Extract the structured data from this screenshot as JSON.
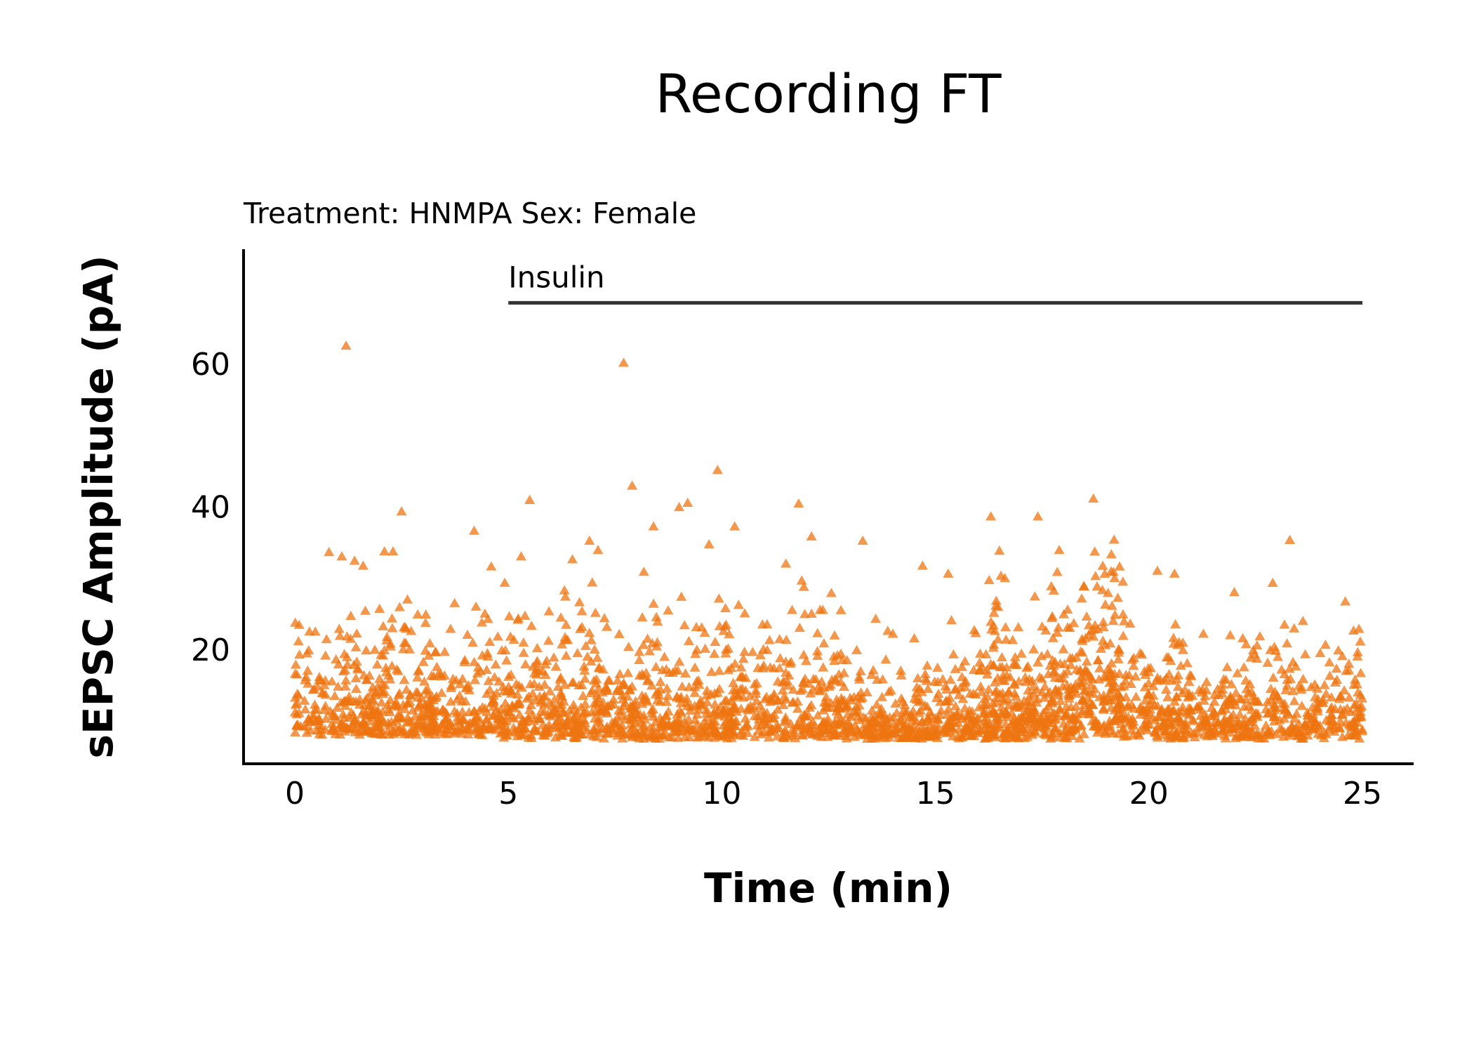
{
  "chart_data": {
    "type": "scatter",
    "title": "Recording FT",
    "subtitle": "Treatment: HNMPA  Sex: Female",
    "xlabel": "Time (min)",
    "ylabel": "sEPSC Amplitude (pA)",
    "xlim": [
      -1.2,
      26.2
    ],
    "ylim": [
      4,
      76
    ],
    "xticks": [
      0,
      5,
      10,
      15,
      20,
      25
    ],
    "yticks": [
      20,
      40,
      60
    ],
    "grid": false,
    "legend": "none",
    "marker": "triangle",
    "color": "#ee7410",
    "annotation": {
      "label": "Insulin",
      "x_start": 5,
      "x_end": 25,
      "y": 68.5
    },
    "outliers": [
      [
        1.2,
        62.5
      ],
      [
        7.7,
        60.1
      ],
      [
        7.9,
        42.9
      ],
      [
        9.9,
        45.1
      ],
      [
        5.5,
        40.9
      ],
      [
        11.8,
        40.4
      ],
      [
        18.7,
        41.1
      ],
      [
        2.5,
        39.3
      ],
      [
        9.2,
        40.5
      ],
      [
        9.0,
        39.9
      ],
      [
        8.4,
        37.2
      ],
      [
        10.3,
        37.2
      ],
      [
        4.2,
        36.6
      ],
      [
        12.1,
        35.8
      ],
      [
        13.3,
        35.2
      ],
      [
        16.3,
        38.6
      ],
      [
        17.4,
        38.6
      ],
      [
        23.3,
        35.3
      ],
      [
        6.9,
        35.2
      ],
      [
        9.7,
        34.7
      ],
      [
        0.8,
        33.6
      ],
      [
        1.1,
        33.0
      ],
      [
        1.4,
        32.4
      ],
      [
        1.6,
        31.7
      ],
      [
        2.1,
        33.7
      ],
      [
        2.3,
        33.7
      ],
      [
        4.6,
        31.6
      ],
      [
        5.3,
        33.0
      ],
      [
        6.5,
        32.6
      ],
      [
        7.1,
        33.9
      ],
      [
        11.5,
        32.0
      ],
      [
        14.7,
        31.7
      ],
      [
        15.3,
        30.6
      ],
      [
        16.5,
        33.8
      ],
      [
        17.9,
        33.9
      ],
      [
        20.2,
        31.0
      ],
      [
        20.6,
        30.6
      ],
      [
        22.0,
        28.0
      ],
      [
        22.9,
        29.3
      ],
      [
        24.6,
        26.7
      ]
    ],
    "dense_regions": [
      {
        "x": [
          0.0,
          4.8
        ],
        "n": 520,
        "y_min": 8.0,
        "scale": 5.5,
        "y_cap": 27
      },
      {
        "x": [
          4.8,
          12.8
        ],
        "n": 900,
        "y_min": 7.5,
        "scale": 5.5,
        "y_cap": 31
      },
      {
        "x": [
          12.8,
          16.2
        ],
        "n": 360,
        "y_min": 7.5,
        "scale": 4.2,
        "y_cap": 26
      },
      {
        "x": [
          16.2,
          18.4
        ],
        "n": 330,
        "y_min": 7.5,
        "scale": 5.8,
        "y_cap": 31
      },
      {
        "x": [
          18.4,
          19.4
        ],
        "n": 160,
        "y_min": 8.0,
        "scale": 9.0,
        "y_cap": 37
      },
      {
        "x": [
          19.4,
          25.0
        ],
        "n": 560,
        "y_min": 7.5,
        "scale": 4.6,
        "y_cap": 24
      }
    ]
  }
}
